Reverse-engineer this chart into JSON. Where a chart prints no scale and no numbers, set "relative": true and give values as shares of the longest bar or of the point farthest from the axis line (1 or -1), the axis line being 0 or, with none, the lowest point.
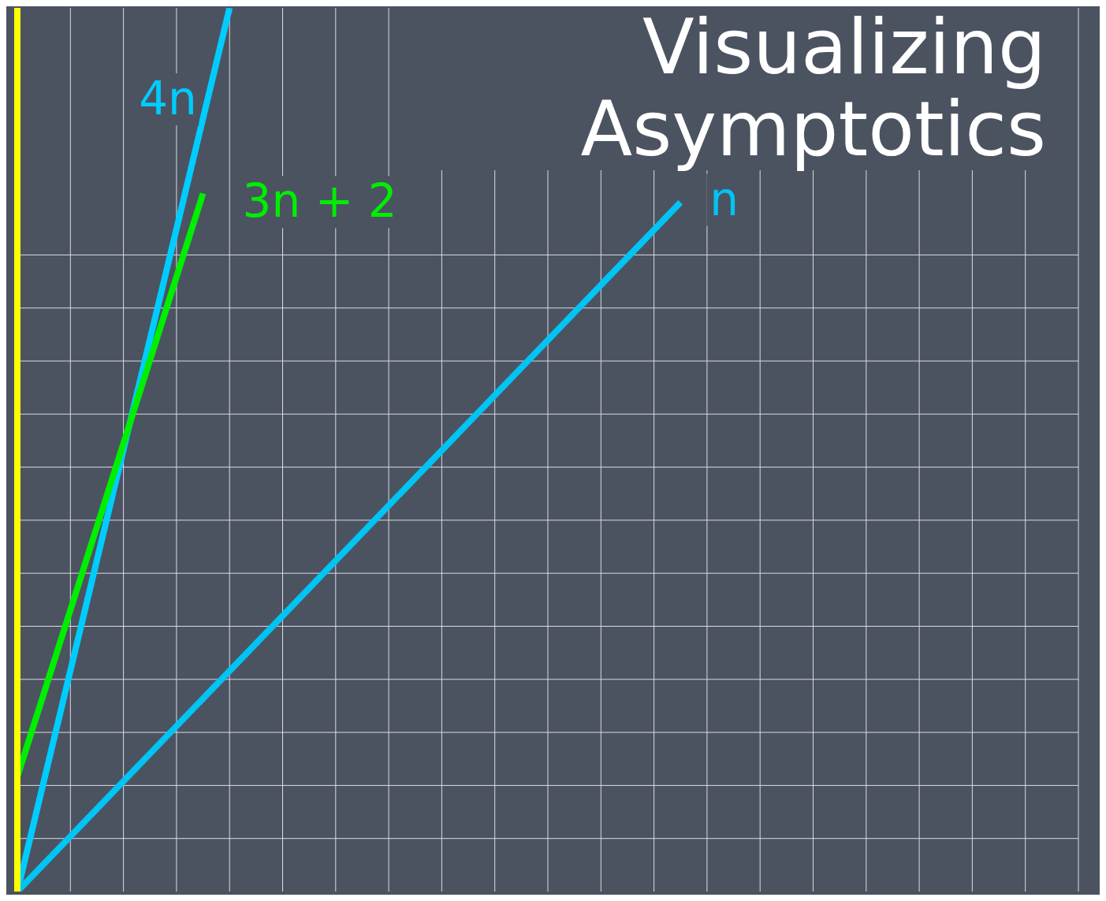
{
  "chart_data": {
    "type": "line",
    "title": "Visualizing Asymptotics",
    "relative": true,
    "grid": true,
    "categories": [
      null,
      null,
      null,
      null,
      null,
      null,
      null,
      null,
      null,
      null,
      null,
      null,
      null,
      null,
      null,
      null,
      null,
      null,
      null,
      null,
      null,
      null,
      null,
      null,
      null,
      null,
      null,
      null,
      null,
      null,
      null,
      null,
      null,
      null,
      null,
      null,
      null,
      null,
      null,
      null,
      null
    ],
    "series": [
      {
        "name": "4n",
        "color": "#00ccff",
        "values": [
          0,
          null,
          null,
          null,
          null,
          null,
          null,
          null,
          1,
          null,
          null,
          null,
          null,
          null,
          null,
          null,
          null,
          null,
          null,
          null,
          null,
          null,
          null,
          null,
          null,
          null,
          null,
          null,
          null,
          null,
          null,
          null,
          null,
          null,
          null,
          null,
          null,
          null,
          null,
          null,
          null
        ]
      },
      {
        "name": "3n + 2",
        "color": "#00ee00",
        "values": [
          0.13,
          null,
          null,
          null,
          null,
          null,
          null,
          0.79,
          null,
          null,
          null,
          null,
          null,
          null,
          null,
          null,
          null,
          null,
          null,
          null,
          null,
          null,
          null,
          null,
          null,
          null,
          null,
          null,
          null,
          null,
          null,
          null,
          null,
          null,
          null,
          null,
          null,
          null,
          null,
          null,
          null
        ]
      },
      {
        "name": "n",
        "color": "#00c4f4",
        "values": [
          0,
          null,
          null,
          null,
          null,
          null,
          null,
          null,
          null,
          null,
          null,
          null,
          null,
          null,
          null,
          null,
          null,
          null,
          null,
          null,
          null,
          null,
          null,
          null,
          null,
          0.78,
          null,
          null,
          null,
          null,
          null,
          null,
          null,
          null,
          null,
          null,
          null,
          null,
          null,
          null,
          null
        ]
      }
    ]
  }
}
